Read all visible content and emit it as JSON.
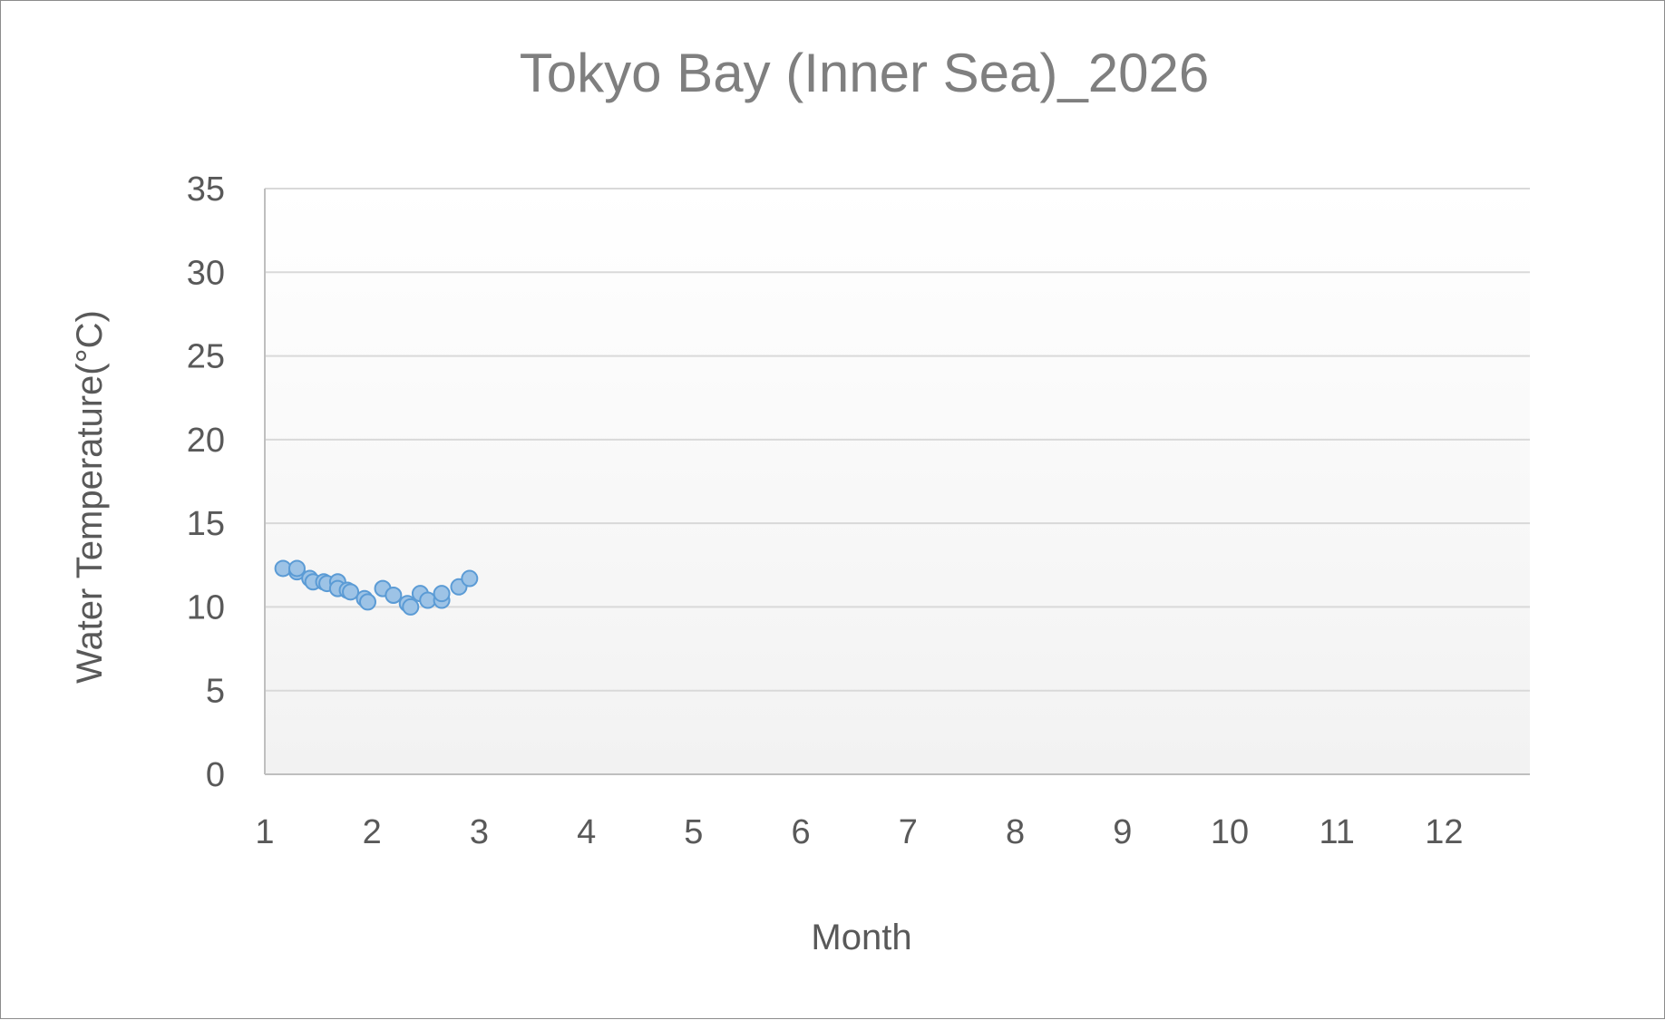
{
  "chart_data": {
    "type": "scatter",
    "title": "Tokyo Bay (Inner Sea)_2026",
    "xlabel": "Month",
    "ylabel": "Water Temperature(°C)",
    "xlim": [
      1,
      12.8
    ],
    "ylim": [
      0,
      35
    ],
    "xticks": [
      1,
      2,
      3,
      4,
      5,
      6,
      7,
      8,
      9,
      10,
      11,
      12
    ],
    "yticks": [
      0,
      5,
      10,
      15,
      20,
      25,
      30,
      35
    ],
    "grid": "horizontal",
    "legend": "none",
    "series": [
      {
        "points": [
          {
            "x": 1.17,
            "y": 12.3
          },
          {
            "x": 1.3,
            "y": 12.1
          },
          {
            "x": 1.3,
            "y": 12.3
          },
          {
            "x": 1.42,
            "y": 11.7
          },
          {
            "x": 1.45,
            "y": 11.5
          },
          {
            "x": 1.55,
            "y": 11.5
          },
          {
            "x": 1.58,
            "y": 11.4
          },
          {
            "x": 1.68,
            "y": 11.5
          },
          {
            "x": 1.68,
            "y": 11.1
          },
          {
            "x": 1.77,
            "y": 11.0
          },
          {
            "x": 1.8,
            "y": 10.9
          },
          {
            "x": 1.93,
            "y": 10.5
          },
          {
            "x": 1.96,
            "y": 10.3
          },
          {
            "x": 2.1,
            "y": 11.1
          },
          {
            "x": 2.2,
            "y": 10.7
          },
          {
            "x": 2.33,
            "y": 10.2
          },
          {
            "x": 2.36,
            "y": 10.0
          },
          {
            "x": 2.45,
            "y": 10.8
          },
          {
            "x": 2.52,
            "y": 10.4
          },
          {
            "x": 2.65,
            "y": 10.4
          },
          {
            "x": 2.65,
            "y": 10.8
          },
          {
            "x": 2.81,
            "y": 11.2
          },
          {
            "x": 2.91,
            "y": 11.7
          }
        ]
      }
    ],
    "colors": {
      "marker_fill": "#9dc3e6",
      "marker_stroke": "#5b9bd5",
      "gridline": "#d9d9d9",
      "axis_line": "#bfbfbf",
      "plot_bg_top": "#ffffff",
      "plot_bg_bottom": "#f2f2f2",
      "title": "#7f7f7f",
      "label": "#595959"
    }
  }
}
